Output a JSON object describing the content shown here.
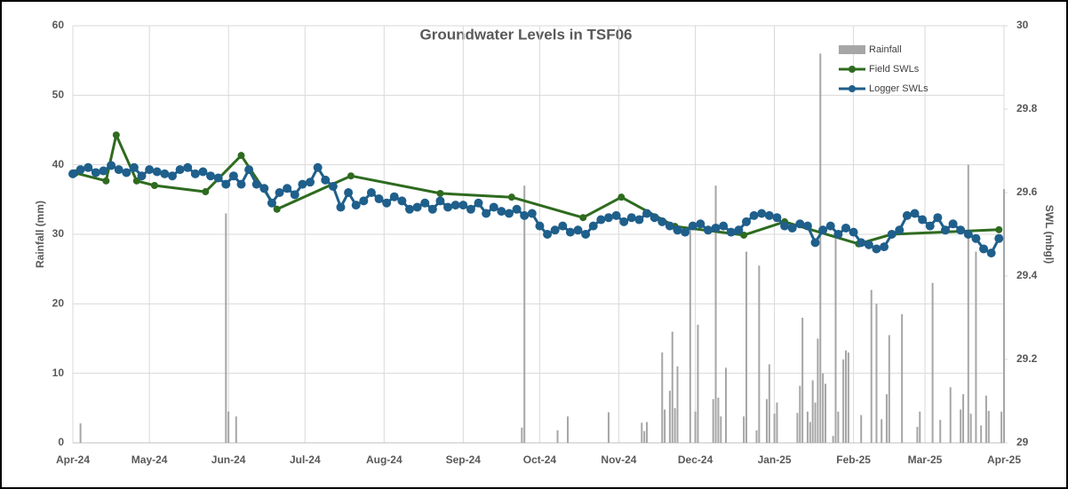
{
  "chart_data": {
    "type": "combo",
    "title": "Groundwater Levels in TSF06",
    "ylabel": "Rainfall (mm)",
    "y2label": "SWL (mbgl)",
    "xlim": [
      0,
      365
    ],
    "xticks": [
      {
        "value": 0,
        "label": "Apr-24"
      },
      {
        "value": 30,
        "label": "May-24"
      },
      {
        "value": 61,
        "label": "Jun-24"
      },
      {
        "value": 91,
        "label": "Jul-24"
      },
      {
        "value": 122,
        "label": "Aug-24"
      },
      {
        "value": 153,
        "label": "Sep-24"
      },
      {
        "value": 183,
        "label": "Oct-24"
      },
      {
        "value": 214,
        "label": "Nov-24"
      },
      {
        "value": 244,
        "label": "Dec-24"
      },
      {
        "value": 275,
        "label": "Jan-25"
      },
      {
        "value": 306,
        "label": "Feb-25"
      },
      {
        "value": 334,
        "label": "Mar-25"
      },
      {
        "value": 365,
        "label": "Apr-25"
      }
    ],
    "ylim": [
      0,
      60
    ],
    "yticks": [
      0,
      10,
      20,
      30,
      40,
      50,
      60
    ],
    "y2lim": [
      29,
      30
    ],
    "y2ticks": [
      29,
      29.2,
      29.4,
      29.6,
      29.8,
      30
    ],
    "grid": true,
    "legend": "upper right",
    "series": [
      {
        "name": "Rainfall",
        "type": "bar",
        "color": "#a6a6a6",
        "x": [
          3,
          60,
          61,
          64,
          176,
          177,
          190,
          194,
          210,
          223,
          224,
          225,
          231,
          232,
          234,
          235,
          236,
          237,
          242,
          244,
          245,
          251,
          252,
          253,
          254,
          256,
          263,
          264,
          268,
          269,
          272,
          273,
          275,
          276,
          284,
          285,
          286,
          288,
          289,
          290,
          291,
          292,
          293,
          294,
          295,
          298,
          299,
          300,
          302,
          303,
          304,
          309,
          313,
          315,
          317,
          319,
          320,
          325,
          331,
          332,
          337,
          340,
          344,
          348,
          349,
          351,
          352,
          354,
          356,
          358,
          359,
          364,
          365
        ],
        "values": [
          2.8,
          33,
          4.5,
          3.8,
          2.2,
          37,
          1.8,
          3.8,
          4.4,
          2.9,
          1.7,
          3.0,
          13,
          4.8,
          7.5,
          16,
          5,
          11,
          31,
          4.5,
          17,
          6.3,
          37,
          6.5,
          3.8,
          10.8,
          3.8,
          27.5,
          1.8,
          25.5,
          6.3,
          11.3,
          4.2,
          5.8,
          4.3,
          8.2,
          18,
          4.5,
          3,
          9,
          5.8,
          15,
          56,
          10,
          8.5,
          1,
          30.5,
          4.5,
          12,
          13.3,
          13,
          4,
          22,
          20,
          3.4,
          7,
          15.5,
          18.5,
          2.3,
          4.5,
          23,
          3.3,
          8,
          4.8,
          7,
          40,
          4.2,
          27.5,
          2.5,
          6.8,
          4.6,
          4.5,
          36.5
        ]
      },
      {
        "name": "Field SWLs",
        "type": "line",
        "axis": "y2",
        "color": "#2e6b1f",
        "x": [
          1,
          13,
          17,
          25,
          32,
          52,
          66,
          80,
          109,
          144,
          172,
          200,
          215,
          236,
          263,
          279,
          308,
          321,
          363
        ],
        "values": [
          29.647,
          29.628,
          29.738,
          29.628,
          29.617,
          29.602,
          29.689,
          29.56,
          29.64,
          29.598,
          29.589,
          29.54,
          29.589,
          29.519,
          29.498,
          29.53,
          29.477,
          29.5,
          29.511
        ]
      },
      {
        "name": "Logger SWLs",
        "type": "line",
        "axis": "y2",
        "color": "#1f5f8b",
        "x": [
          0,
          3,
          6,
          9,
          12,
          15,
          18,
          21,
          24,
          27,
          30,
          33,
          36,
          39,
          42,
          45,
          48,
          51,
          54,
          57,
          60,
          63,
          66,
          69,
          72,
          75,
          78,
          81,
          84,
          87,
          90,
          93,
          96,
          99,
          102,
          105,
          108,
          111,
          114,
          117,
          120,
          123,
          126,
          129,
          132,
          135,
          138,
          141,
          144,
          147,
          150,
          153,
          156,
          159,
          162,
          165,
          168,
          171,
          174,
          177,
          180,
          183,
          186,
          189,
          192,
          195,
          198,
          201,
          204,
          207,
          210,
          213,
          216,
          219,
          222,
          225,
          228,
          231,
          234,
          237,
          240,
          243,
          246,
          249,
          252,
          255,
          258,
          261,
          264,
          267,
          270,
          273,
          276,
          279,
          282,
          285,
          288,
          291,
          294,
          297,
          300,
          303,
          306,
          309,
          312,
          315,
          318,
          321,
          324,
          327,
          330,
          333,
          336,
          339,
          342,
          345,
          348,
          351,
          354,
          357,
          360,
          363
        ],
        "values": [
          29.645,
          29.655,
          29.66,
          29.648,
          29.652,
          29.665,
          29.655,
          29.648,
          29.66,
          29.64,
          29.655,
          29.65,
          29.645,
          29.64,
          29.655,
          29.66,
          29.645,
          29.65,
          29.64,
          29.635,
          29.62,
          29.64,
          29.62,
          29.655,
          29.62,
          29.61,
          29.575,
          29.6,
          29.61,
          29.595,
          29.62,
          29.625,
          29.66,
          29.63,
          29.615,
          29.565,
          29.6,
          29.57,
          29.58,
          29.6,
          29.585,
          29.575,
          29.59,
          29.58,
          29.56,
          29.565,
          29.575,
          29.56,
          29.58,
          29.565,
          29.57,
          29.57,
          29.56,
          29.575,
          29.55,
          29.565,
          29.555,
          29.55,
          29.56,
          29.545,
          29.55,
          29.52,
          29.5,
          29.51,
          29.52,
          29.505,
          29.51,
          29.5,
          29.52,
          29.535,
          29.54,
          29.545,
          29.53,
          29.54,
          29.535,
          29.55,
          29.54,
          29.53,
          29.52,
          29.51,
          29.505,
          29.52,
          29.525,
          29.51,
          29.515,
          29.52,
          29.505,
          29.51,
          29.53,
          29.545,
          29.55,
          29.545,
          29.54,
          29.52,
          29.515,
          29.525,
          29.52,
          29.48,
          29.51,
          29.52,
          29.5,
          29.515,
          29.505,
          29.48,
          29.475,
          29.465,
          29.47,
          29.5,
          29.51,
          29.545,
          29.55,
          29.535,
          29.52,
          29.54,
          29.51,
          29.525,
          29.51,
          29.5,
          29.49,
          29.465,
          29.455,
          29.49
        ]
      }
    ]
  }
}
